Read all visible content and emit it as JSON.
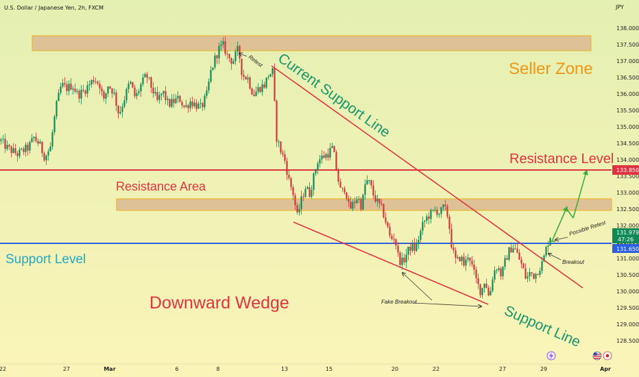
{
  "header": {
    "title": "U.S. Dollar / Japanese Yen, 2h, FXCM",
    "currency": "JPY"
  },
  "colors": {
    "bg_top": "#e4efb2",
    "bg_bottom": "#fbf4b8",
    "up": "#0f8a57",
    "down": "#d2343c",
    "red_line": "#e03342",
    "blue_line": "#2b5fe0",
    "zone_fill": "#dcb892",
    "zone_border": "#e9b21c",
    "green_text": "#17966d",
    "orange_text": "#f29618",
    "red_text": "#e03342",
    "cyan_text": "#23a9c4",
    "arrow": "#3fae3a"
  },
  "price_axis": {
    "ticks": [
      "138.000",
      "137.500",
      "137.000",
      "136.500",
      "136.000",
      "135.500",
      "135.000",
      "134.500",
      "134.000",
      "133.500",
      "133.000",
      "132.500",
      "132.000",
      "131.500",
      "131.000",
      "130.500",
      "130.000",
      "129.500",
      "129.000",
      "128.500"
    ],
    "labels": {
      "resistance": "133.850",
      "current": "131.979",
      "countdown": "47:26",
      "support": "131.650"
    }
  },
  "time_axis": {
    "ticks": [
      {
        "label": "22",
        "bold": false
      },
      {
        "label": "27",
        "bold": false
      },
      {
        "label": "Mar",
        "bold": true
      },
      {
        "label": "6",
        "bold": false
      },
      {
        "label": "8",
        "bold": false
      },
      {
        "label": "13",
        "bold": false
      },
      {
        "label": "15",
        "bold": false
      },
      {
        "label": "20",
        "bold": false
      },
      {
        "label": "22",
        "bold": false
      },
      {
        "label": "27",
        "bold": false
      },
      {
        "label": "29",
        "bold": false
      },
      {
        "label": "Apr",
        "bold": true
      }
    ]
  },
  "annotations": {
    "seller_zone": "Seller Zone",
    "current_support_line": "Current Support Line",
    "resistance_level": "Resistance Level",
    "resistance_area": "Resistance Area",
    "support_level": "Support Level",
    "downward_wedge": "Downward Wedge",
    "support_line": "Support Line",
    "retest": "Retest",
    "possible_retest": "Possible Retest",
    "breakout": "Breakout",
    "fake_breakout": "Fake Breakout"
  },
  "chart_data": {
    "type": "candlestick",
    "title": "U.S. Dollar / Japanese Yen, 2h, FXCM",
    "ylim": [
      128.3,
      138.3
    ],
    "levels": {
      "resistance_level": 133.85,
      "support_level": 131.65,
      "last_price": 131.979
    },
    "zones": [
      {
        "name": "Seller Zone",
        "from": 137.45,
        "to": 137.9
      },
      {
        "name": "Resistance Area",
        "from": 132.65,
        "to": 133.0
      }
    ],
    "close_path": [
      [
        0,
        134.8
      ],
      [
        8,
        134.6
      ],
      [
        16,
        134.5
      ],
      [
        24,
        134.4
      ],
      [
        32,
        134.5
      ],
      [
        40,
        134.6
      ],
      [
        48,
        134.9
      ],
      [
        56,
        134.7
      ],
      [
        64,
        134.3
      ],
      [
        72,
        134.6
      ],
      [
        80,
        135.8
      ],
      [
        88,
        136.5
      ],
      [
        96,
        136.4
      ],
      [
        104,
        136.5
      ],
      [
        112,
        136.2
      ],
      [
        120,
        136.3
      ],
      [
        128,
        136.5
      ],
      [
        136,
        136.7
      ],
      [
        144,
        136.5
      ],
      [
        150,
        136.0
      ],
      [
        156,
        136.5
      ],
      [
        164,
        136.3
      ],
      [
        172,
        135.6
      ],
      [
        180,
        136.1
      ],
      [
        188,
        136.6
      ],
      [
        196,
        136.1
      ],
      [
        204,
        136.5
      ],
      [
        212,
        136.8
      ],
      [
        220,
        136.4
      ],
      [
        228,
        136.0
      ],
      [
        236,
        136.3
      ],
      [
        244,
        135.9
      ],
      [
        252,
        136.0
      ],
      [
        260,
        136.1
      ],
      [
        268,
        135.8
      ],
      [
        276,
        136.0
      ],
      [
        284,
        135.9
      ],
      [
        292,
        135.8
      ],
      [
        300,
        136.2
      ],
      [
        306,
        136.9
      ],
      [
        312,
        137.3
      ],
      [
        318,
        137.6
      ],
      [
        324,
        137.7
      ],
      [
        330,
        137.4
      ],
      [
        338,
        137.2
      ],
      [
        346,
        137.6
      ],
      [
        352,
        136.8
      ],
      [
        360,
        136.7
      ],
      [
        368,
        136.2
      ],
      [
        376,
        136.4
      ],
      [
        384,
        136.5
      ],
      [
        390,
        136.8
      ],
      [
        396,
        136.9
      ],
      [
        402,
        134.9
      ],
      [
        408,
        134.5
      ],
      [
        414,
        134.2
      ],
      [
        420,
        133.6
      ],
      [
        426,
        133.2
      ],
      [
        432,
        132.5
      ],
      [
        438,
        133.0
      ],
      [
        444,
        133.4
      ],
      [
        450,
        133.2
      ],
      [
        456,
        133.7
      ],
      [
        462,
        134.2
      ],
      [
        468,
        134.3
      ],
      [
        476,
        134.4
      ],
      [
        484,
        134.6
      ],
      [
        490,
        133.8
      ],
      [
        496,
        133.2
      ],
      [
        502,
        133.4
      ],
      [
        508,
        132.7
      ],
      [
        514,
        132.9
      ],
      [
        520,
        133.1
      ],
      [
        526,
        132.8
      ],
      [
        532,
        133.6
      ],
      [
        538,
        133.5
      ],
      [
        544,
        133.1
      ],
      [
        550,
        132.9
      ],
      [
        556,
        132.7
      ],
      [
        562,
        132.3
      ],
      [
        568,
        131.8
      ],
      [
        574,
        131.9
      ],
      [
        580,
        131.2
      ],
      [
        586,
        131.1
      ],
      [
        592,
        131.4
      ],
      [
        598,
        131.6
      ],
      [
        604,
        131.5
      ],
      [
        610,
        131.9
      ],
      [
        616,
        132.3
      ],
      [
        622,
        132.5
      ],
      [
        628,
        132.6
      ],
      [
        634,
        132.7
      ],
      [
        640,
        132.6
      ],
      [
        646,
        132.8
      ],
      [
        652,
        132.5
      ],
      [
        658,
        131.5
      ],
      [
        664,
        131.1
      ],
      [
        670,
        131.3
      ],
      [
        676,
        131.0
      ],
      [
        682,
        131.4
      ],
      [
        688,
        130.9
      ],
      [
        694,
        130.5
      ],
      [
        700,
        130.2
      ],
      [
        706,
        130.6
      ],
      [
        712,
        130.0
      ],
      [
        718,
        130.8
      ],
      [
        724,
        131.0
      ],
      [
        730,
        130.7
      ],
      [
        736,
        131.2
      ],
      [
        742,
        131.5
      ],
      [
        748,
        131.6
      ],
      [
        754,
        131.3
      ],
      [
        760,
        131.0
      ],
      [
        766,
        130.6
      ],
      [
        772,
        130.8
      ],
      [
        778,
        130.7
      ],
      [
        784,
        130.9
      ],
      [
        790,
        131.1
      ],
      [
        796,
        131.6
      ],
      [
        802,
        131.98
      ]
    ],
    "trendlines": [
      {
        "name": "Current Support Line",
        "from": [
          396,
          136.9
        ],
        "to": [
          850,
          130.5
        ]
      },
      {
        "name": "Support Line",
        "from": [
          428,
          132.3
        ],
        "to": [
          712,
          129.95
        ]
      }
    ],
    "xlabel": "",
    "ylabel": ""
  }
}
